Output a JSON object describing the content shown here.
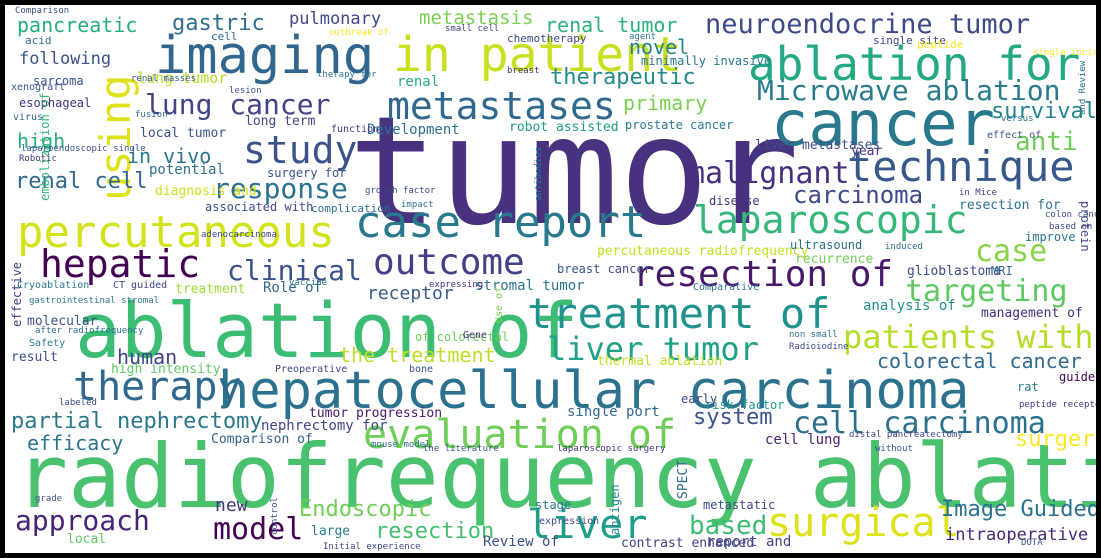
{
  "words": [
    {
      "text": "tumor",
      "color": "#46327e"
    },
    {
      "text": "radiofrequency ablation",
      "color": "#4ac16d"
    },
    {
      "text": "ablation of",
      "color": "#3dbc74"
    },
    {
      "text": "hepatocellular carcinoma",
      "color": "#2c728e"
    },
    {
      "text": "imaging",
      "color": "#31668e"
    },
    {
      "text": "cancer",
      "color": "#2a788e"
    },
    {
      "text": "ablation for",
      "color": "#23a983"
    },
    {
      "text": "in patient",
      "color": "#c8e020"
    },
    {
      "text": "case report",
      "color": "#2a788e"
    },
    {
      "text": "percutaneous",
      "color": "#d2e21b"
    },
    {
      "text": "technique",
      "color": "#38588c"
    },
    {
      "text": "treatment of",
      "color": "#20928c"
    },
    {
      "text": "laparoscopic",
      "color": "#35b779"
    },
    {
      "text": "metastases",
      "color": "#31688e"
    },
    {
      "text": "using",
      "color": "#dde318"
    },
    {
      "text": "Microwave ablation",
      "color": "#287c8e"
    },
    {
      "text": "neuroendocrine tumor",
      "color": "#3e4989"
    },
    {
      "text": "evaluation of",
      "color": "#6ece58"
    },
    {
      "text": "therapy",
      "color": "#31688e"
    },
    {
      "text": "hepatic",
      "color": "#440154"
    },
    {
      "text": "outcome",
      "color": "#424086"
    },
    {
      "text": "resection of",
      "color": "#48186a"
    },
    {
      "text": "study",
      "color": "#3b528b"
    },
    {
      "text": "lung cancer",
      "color": "#414487"
    },
    {
      "text": "cell carcinoma",
      "color": "#2d708e"
    },
    {
      "text": "liver tumor",
      "color": "#1fa187"
    },
    {
      "text": "patients with",
      "color": "#b5de2b"
    },
    {
      "text": "surgical",
      "color": "#dde318"
    },
    {
      "text": "liver",
      "color": "#1f9e89"
    },
    {
      "text": "model",
      "color": "#440154"
    },
    {
      "text": "approach",
      "color": "#482475"
    },
    {
      "text": "clinical",
      "color": "#3b528b"
    },
    {
      "text": "response",
      "color": "#2c728e"
    },
    {
      "text": "malignant",
      "color": "#46307e"
    },
    {
      "text": "targeting",
      "color": "#5ec962"
    },
    {
      "text": "case",
      "color": "#86d549"
    },
    {
      "text": "carcinoma",
      "color": "#3e4989"
    },
    {
      "text": "renal tumor",
      "color": "#2db27d"
    },
    {
      "text": "therapeutic",
      "color": "#238a8d"
    },
    {
      "text": "metastasis",
      "color": "#7ad151"
    },
    {
      "text": "gastric",
      "color": "#2e6e8e"
    },
    {
      "text": "pulmonary",
      "color": "#3f4788"
    },
    {
      "text": "primary",
      "color": "#7ad151"
    },
    {
      "text": "novel",
      "color": "#25838e"
    },
    {
      "text": "survival",
      "color": "#25848e"
    },
    {
      "text": "anti",
      "color": "#6ece58"
    },
    {
      "text": "pancreatic",
      "color": "#27ad81"
    },
    {
      "text": "in vivo",
      "color": "#2a768e"
    },
    {
      "text": "renal cell",
      "color": "#31688e"
    },
    {
      "text": "partial nephrectomy",
      "color": "#2a788e"
    },
    {
      "text": "efficacy",
      "color": "#2b758e"
    },
    {
      "text": "based",
      "color": "#3dbc74"
    },
    {
      "text": "Image Guided",
      "color": "#2c728e"
    },
    {
      "text": "Endoscopic",
      "color": "#6ece58"
    },
    {
      "text": "resection",
      "color": "#44bf70"
    },
    {
      "text": "colorectal cancer",
      "color": "#31688e"
    },
    {
      "text": "system",
      "color": "#3b528b"
    },
    {
      "text": "surgery",
      "color": "#fde725"
    },
    {
      "text": "the treatment",
      "color": "#bddf26"
    },
    {
      "text": "human",
      "color": "#404688"
    },
    {
      "text": "receptor",
      "color": "#365c8d"
    },
    {
      "text": "new",
      "color": "#46337f"
    },
    {
      "text": "following",
      "color": "#3b528b"
    },
    {
      "text": "high",
      "color": "#29af7f"
    },
    {
      "text": "lung tumor",
      "color": "#b8de29"
    },
    {
      "text": "intraoperative",
      "color": "#482878"
    },
    {
      "text": "high intensity",
      "color": "#fde725"
    },
    {
      "text": "thermal ablation",
      "color": "#5ec962"
    },
    {
      "text": "percutaneous radiofrequency",
      "color": "#c2df23"
    },
    {
      "text": "liver metastases",
      "color": "#c5e021"
    },
    {
      "text": "Development",
      "color": "#3d4e8a"
    },
    {
      "text": "robot assisted",
      "color": "#2c738e"
    },
    {
      "text": "prostate cancer",
      "color": "#1e9c89"
    },
    {
      "text": "local tumor",
      "color": "#2a788e"
    },
    {
      "text": "long term",
      "color": "#3a548c"
    },
    {
      "text": "potential",
      "color": "#404588"
    },
    {
      "text": "surgery for",
      "color": "#2d708e"
    },
    {
      "text": "associated with",
      "color": "#3b528b"
    },
    {
      "text": "complication",
      "color": "#3e4c8a"
    },
    {
      "text": "resection for",
      "color": "#2c728e"
    },
    {
      "text": "diagnosis and",
      "color": "#2b748e"
    },
    {
      "text": "disease",
      "color": "#ccdf1e"
    },
    {
      "text": "year",
      "color": "#463480"
    },
    {
      "text": "renal",
      "color": "#453781"
    },
    {
      "text": "minimally invasive",
      "color": "#27ad81"
    },
    {
      "text": "stromal tumor",
      "color": "#2a788e"
    },
    {
      "text": "breast cancer",
      "color": "#2a788e"
    },
    {
      "text": "Role of",
      "color": "#3b528b"
    },
    {
      "text": "treatment",
      "color": "#31688e"
    },
    {
      "text": "analysis of",
      "color": "#a0da39"
    },
    {
      "text": "management of",
      "color": "#20928c"
    },
    {
      "text": "glioblastoma",
      "color": "#46307e"
    },
    {
      "text": "ultrasound",
      "color": "#3e4989"
    },
    {
      "text": "recurrence",
      "color": "#2e6f8e"
    },
    {
      "text": "improve",
      "color": "#73d056"
    },
    {
      "text": "MRI",
      "color": "#2a778e"
    },
    {
      "text": "protein",
      "color": "#31688e"
    },
    {
      "text": "tumor progression",
      "color": "#3f4889"
    },
    {
      "text": "nephrectomy for",
      "color": "#481769"
    },
    {
      "text": "single port",
      "color": "#404688"
    },
    {
      "text": "risk factor",
      "color": "#31688e"
    },
    {
      "text": "cell lung",
      "color": "#1e9b8a"
    },
    {
      "text": "rat",
      "color": "#482475"
    },
    {
      "text": "guided",
      "color": "#287d8e"
    },
    {
      "text": "early",
      "color": "#440154"
    },
    {
      "text": "SPECT",
      "color": "#3e4989"
    },
    {
      "text": "Review of",
      "color": "#31688e"
    },
    {
      "text": "contrast enhanced",
      "color": "#3b528b"
    },
    {
      "text": "report and",
      "color": "#414287"
    },
    {
      "text": "metastatic",
      "color": "#404688"
    },
    {
      "text": "stage",
      "color": "#3f4889"
    },
    {
      "text": "expression",
      "color": "#2a788e"
    },
    {
      "text": "antigen",
      "color": "#3e4989"
    },
    {
      "text": "large",
      "color": "#25858e"
    },
    {
      "text": "local",
      "color": "#287c8e"
    },
    {
      "text": "Comparison of",
      "color": "#5ec962"
    },
    {
      "text": "molecular",
      "color": "#33638d"
    },
    {
      "text": "result",
      "color": "#3b528b"
    },
    {
      "text": "Safety",
      "color": "#3b528b"
    },
    {
      "text": "effective",
      "color": "#2a788e"
    },
    {
      "text": "virus",
      "color": "#404588"
    },
    {
      "text": "esophageal",
      "color": "#31688e"
    },
    {
      "text": "sarcoma",
      "color": "#46327e"
    },
    {
      "text": "xenograft",
      "color": "#3b528b"
    },
    {
      "text": "acid",
      "color": "#3b528b"
    },
    {
      "text": "embolization of",
      "color": "#2d708e"
    },
    {
      "text": "of colorectal",
      "color": "#35b779"
    },
    {
      "text": "Gene",
      "color": "#6ece58"
    },
    {
      "text": "Use of",
      "color": "#46327e"
    },
    {
      "text": "bone",
      "color": "#7ad151"
    },
    {
      "text": "Preoperative",
      "color": "#3b528b"
    },
    {
      "text": "Comparative",
      "color": "#3e4989"
    },
    {
      "text": "Cryoablation",
      "color": "#2d708e"
    },
    {
      "text": "CT guided",
      "color": "#2a788e"
    },
    {
      "text": "function",
      "color": "#3e4989"
    },
    {
      "text": "effect of",
      "color": "#46327e"
    },
    {
      "text": "versus",
      "color": "#3b528b"
    },
    {
      "text": "single site",
      "color": "#2d708e"
    },
    {
      "text": "peptide",
      "color": "#404588"
    },
    {
      "text": "therapy for",
      "color": "#fde725"
    },
    {
      "text": "chemotherapy",
      "color": "#2a788e"
    },
    {
      "text": "cell",
      "color": "#3e4989"
    },
    {
      "text": "lesion",
      "color": "#31688e"
    },
    {
      "text": "fusion",
      "color": "#3b528b"
    },
    {
      "text": "renal masses",
      "color": "#2d708e"
    },
    {
      "text": "breast",
      "color": "#3b528b"
    },
    {
      "text": "agent",
      "color": "#46327e"
    },
    {
      "text": "small cell",
      "color": "#2a788e"
    },
    {
      "text": "outbreak of",
      "color": "#3e4989"
    },
    {
      "text": "Comparison",
      "color": "#fde725"
    },
    {
      "text": "and Review",
      "color": "#3b528b"
    },
    {
      "text": "single incision",
      "color": "#2d708e"
    },
    {
      "text": "DOTA",
      "color": "#fde725"
    },
    {
      "text": "peptide receptor",
      "color": "#3b528b"
    },
    {
      "text": "labeled",
      "color": "#46327e"
    },
    {
      "text": "the literature",
      "color": "#3e4989"
    },
    {
      "text": "laparoscopic surgery",
      "color": "#3b528b"
    },
    {
      "text": "distal pancreatectomy",
      "color": "#46327e"
    },
    {
      "text": "after radiofrequency",
      "color": "#3e4989"
    },
    {
      "text": "vaccine",
      "color": "#2d708e"
    },
    {
      "text": "Initial experience",
      "color": "#2a788e"
    },
    {
      "text": "mouse model",
      "color": "#3e4989"
    },
    {
      "text": "grade",
      "color": "#2d708e"
    },
    {
      "text": "laparoendoscopic single",
      "color": "#3b528b"
    },
    {
      "text": "Robotic",
      "color": "#3b528b"
    },
    {
      "text": "antibodies",
      "color": "#46327e"
    },
    {
      "text": "growth factor",
      "color": "#2a788e"
    },
    {
      "text": "induced",
      "color": "#3e4989"
    },
    {
      "text": "colon cancer",
      "color": "#2d708e"
    },
    {
      "text": "in Mice",
      "color": "#3b528b"
    },
    {
      "text": "impact",
      "color": "#3e4989"
    },
    {
      "text": "adenocarcinoma",
      "color": "#2d708e"
    },
    {
      "text": "gastrointestinal stromal",
      "color": "#3e4989"
    },
    {
      "text": "expressing",
      "color": "#2a788e"
    },
    {
      "text": "non small",
      "color": "#46327e"
    },
    {
      "text": "Radioiodine",
      "color": "#3b528b"
    },
    {
      "text": "without",
      "color": "#2d708e"
    },
    {
      "text": "based on",
      "color": "#3e4989"
    },
    {
      "text": "effect",
      "color": "#3b528b"
    },
    {
      "text": "control",
      "color": "#3e4989"
    }
  ]
}
